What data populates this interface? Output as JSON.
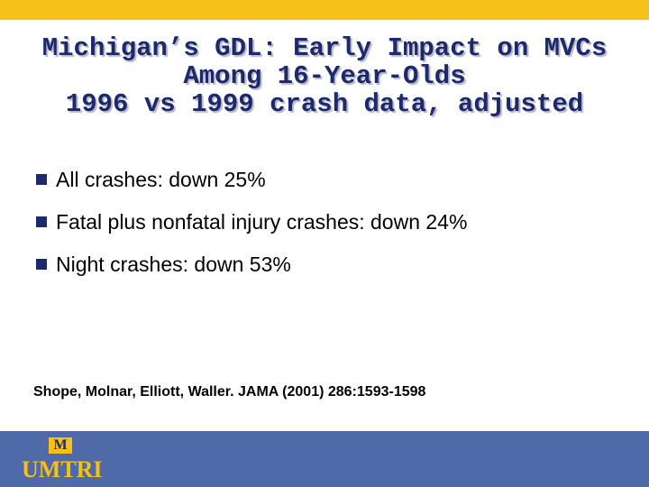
{
  "header": {
    "title_lines": [
      "Michigan’s GDL: Early Impact on MVCs",
      "Among 16-Year-Olds",
      "1996 vs 1999 crash data, adjusted"
    ]
  },
  "bullets": [
    "All crashes: down 25%",
    "Fatal plus nonfatal injury crashes: down 24%",
    "Night crashes: down 53%"
  ],
  "citation": "Shope, Molnar, Elliott, Waller.  JAMA (2001) 286:1593-1598",
  "footer": {
    "logo_mark": "M",
    "logo_text": "UMTRI"
  }
}
